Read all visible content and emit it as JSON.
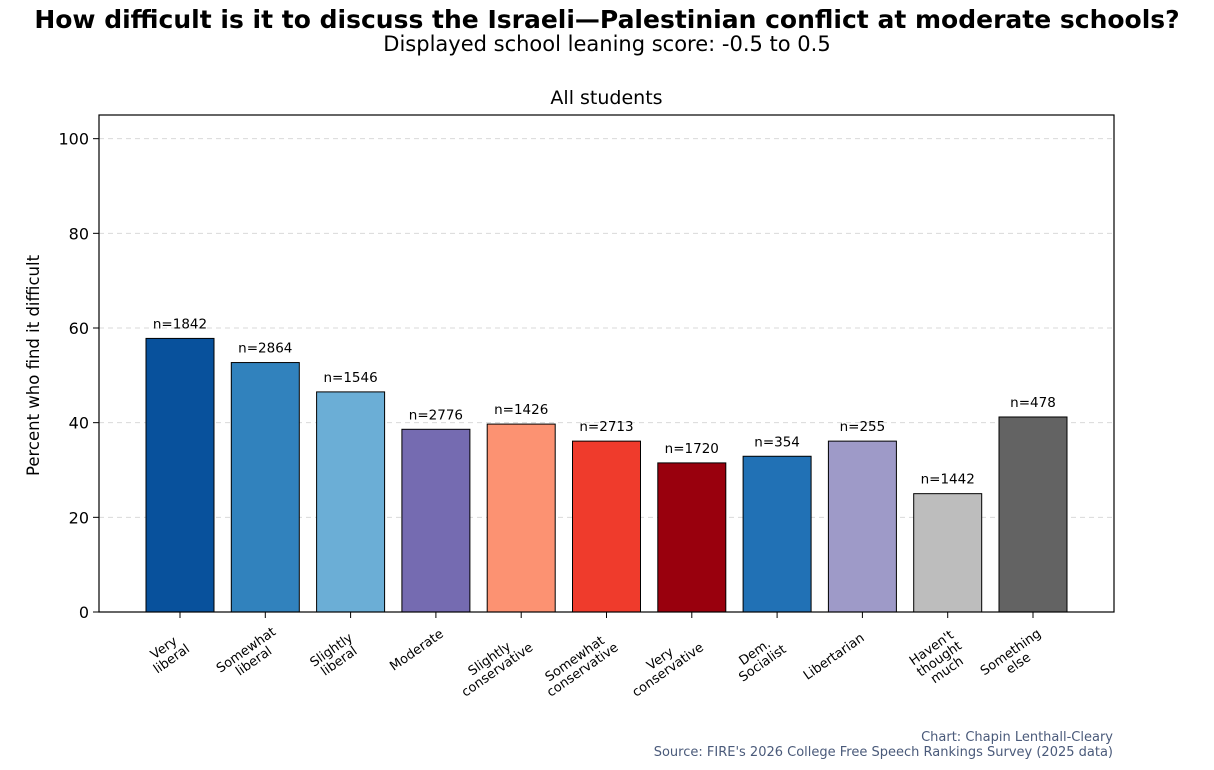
{
  "title": "How difficult is it to discuss the Israeli—Palestinian conflict at moderate schools?",
  "subtitle": "Displayed school leaning score: -0.5 to 0.5",
  "chart_data": {
    "type": "bar",
    "title": "All students",
    "ylabel": "Percent who find it difficult",
    "xlabel": "",
    "ylim": [
      0,
      105
    ],
    "yticks": [
      0,
      20,
      40,
      60,
      80,
      100
    ],
    "grid": true,
    "categories": [
      [
        "Very",
        "liberal"
      ],
      [
        "Somewhat",
        "liberal"
      ],
      [
        "Slightly",
        "liberal"
      ],
      [
        "Moderate"
      ],
      [
        "Slightly",
        "conservative"
      ],
      [
        "Somewhat",
        "conservative"
      ],
      [
        "Very",
        "conservative"
      ],
      [
        "Dem.",
        "Socialist"
      ],
      [
        "Libertarian"
      ],
      [
        "Haven't",
        "thought",
        "much"
      ],
      [
        "Something",
        "else"
      ]
    ],
    "values": [
      57.8,
      52.7,
      46.5,
      38.6,
      39.7,
      36.1,
      31.5,
      32.9,
      36.1,
      25.0,
      41.2
    ],
    "data_labels": [
      "n=1842",
      "n=2864",
      "n=1546",
      "n=2776",
      "n=1426",
      "n=2713",
      "n=1720",
      "n=354",
      "n=255",
      "n=1442",
      "n=478"
    ],
    "colors": [
      "#08519c",
      "#3182bd",
      "#6baed6",
      "#756bb1",
      "#fc9272",
      "#ef3b2c",
      "#99000d",
      "#2171b5",
      "#9e9ac8",
      "#bdbdbd",
      "#636363"
    ]
  },
  "credits": {
    "line1": "Chart: Chapin Lenthall-Cleary",
    "line2": "Source: FIRE's 2026 College Free Speech Rankings Survey (2025 data)"
  }
}
